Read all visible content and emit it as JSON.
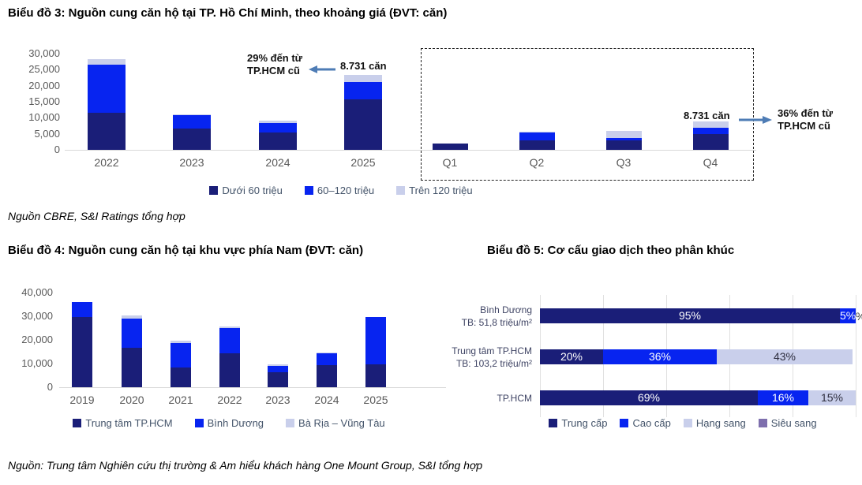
{
  "sources": {
    "source1": "Nguồn CBRE, S&I Ratings tổng hợp",
    "source2": "Nguồn: Trung tâm Nghiên cứu thị trường & Am hiểu khách hàng One Mount Group, S&I tổng hợp"
  },
  "colors": {
    "navy": "#1A1E78",
    "blue": "#0724F0",
    "lavender": "#C9CFEB",
    "purple": "#7E6FAD",
    "arrow": "#4E7CB5",
    "axis_text": "#595959",
    "grid": "#E0E0E0"
  },
  "chart_data": [
    {
      "id": "hcm-supply-by-price",
      "type": "bar",
      "stacked": true,
      "title": "Biểu đồ 3: Nguồn cung căn hộ tại TP. Hồ Chí Minh, theo khoảng giá (ĐVT: căn)",
      "unit": "căn",
      "categories": [
        "2022",
        "2023",
        "2024",
        "2025",
        "Q1",
        "Q2",
        "Q3",
        "Q4"
      ],
      "series": [
        {
          "name": "Dưới 60 triệu",
          "color": "#1A1E78",
          "values": [
            11500,
            6600,
            5500,
            15700,
            1900,
            3000,
            2900,
            5000
          ]
        },
        {
          "name": "60–120 triệu",
          "color": "#0724F0",
          "values": [
            15100,
            4200,
            2800,
            5500,
            0,
            2500,
            800,
            1800
          ]
        },
        {
          "name": "Trên 120 triệu",
          "color": "#C9CFEB",
          "values": [
            1600,
            300,
            900,
            2200,
            0,
            200,
            2100,
            1931
          ]
        }
      ],
      "ylim": [
        0,
        30000
      ],
      "yticks": [
        0,
        5000,
        10000,
        15000,
        20000,
        25000,
        30000
      ],
      "legend_position": "bottom",
      "dashed_box_region": "Q1–Q4",
      "annotations": [
        {
          "text": "29% đến từ\nTP.HCM cũ",
          "arrow": "left",
          "near": "2025"
        },
        {
          "text": "8.731 căn",
          "near": "2025"
        },
        {
          "text": "8.731 căn",
          "near": "Q4"
        },
        {
          "text": "36% đến từ\nTP.HCM cũ",
          "arrow": "right",
          "near": "Q4"
        }
      ]
    },
    {
      "id": "southern-region-supply",
      "type": "bar",
      "stacked": true,
      "title": "Biểu đồ 4: Nguồn cung căn hộ tại khu vực phía Nam (ĐVT: căn)",
      "unit": "căn",
      "categories": [
        "2019",
        "2020",
        "2021",
        "2022",
        "2023",
        "2024",
        "2025"
      ],
      "series": [
        {
          "name": "Trung tâm TP.HCM",
          "color": "#1A1E78",
          "values": [
            29700,
            16700,
            8400,
            14200,
            6300,
            9400,
            9600
          ]
        },
        {
          "name": "Bình Dương",
          "color": "#0724F0",
          "values": [
            6300,
            12400,
            10400,
            10700,
            2800,
            4800,
            20200
          ]
        },
        {
          "name": "Bà Rịa – Vũng Tàu",
          "color": "#C9CFEB",
          "values": [
            0,
            1200,
            1000,
            900,
            500,
            400,
            0
          ]
        }
      ],
      "ylim": [
        0,
        40000
      ],
      "yticks": [
        0,
        10000,
        20000,
        30000,
        40000
      ],
      "legend_position": "bottom"
    },
    {
      "id": "transaction-structure-by-segment",
      "type": "bar",
      "orientation": "horizontal",
      "stacked": true,
      "title": "Biểu đồ 5: Cơ cấu giao dịch theo phân khúc",
      "unit": "%",
      "categories": [
        "Bình Dương\nTB: 51,8 triệu/m²",
        "Trung tâm TP.HCM\nTB: 103,2 triệu/m²",
        "TP.HCM"
      ],
      "series": [
        {
          "name": "Trung cấp",
          "color": "#1A1E78",
          "values": [
            95,
            20,
            69
          ]
        },
        {
          "name": "Cao cấp",
          "color": "#0724F0",
          "values": [
            5,
            36,
            16
          ]
        },
        {
          "name": "Hạng sang",
          "color": "#C9CFEB",
          "values": [
            0,
            43,
            15
          ]
        },
        {
          "name": "Siêu sang",
          "color": "#7E6FAD",
          "values": [
            0,
            0,
            0
          ]
        }
      ],
      "bar_labels": [
        [
          "95%",
          "5%",
          "",
          ""
        ],
        [
          "20%",
          "36%",
          "43%",
          ""
        ],
        [
          "69%",
          "16%",
          "15%",
          ""
        ]
      ],
      "edge_label": "%",
      "xlim": [
        0,
        100
      ],
      "grid": true,
      "legend_position": "bottom"
    }
  ]
}
